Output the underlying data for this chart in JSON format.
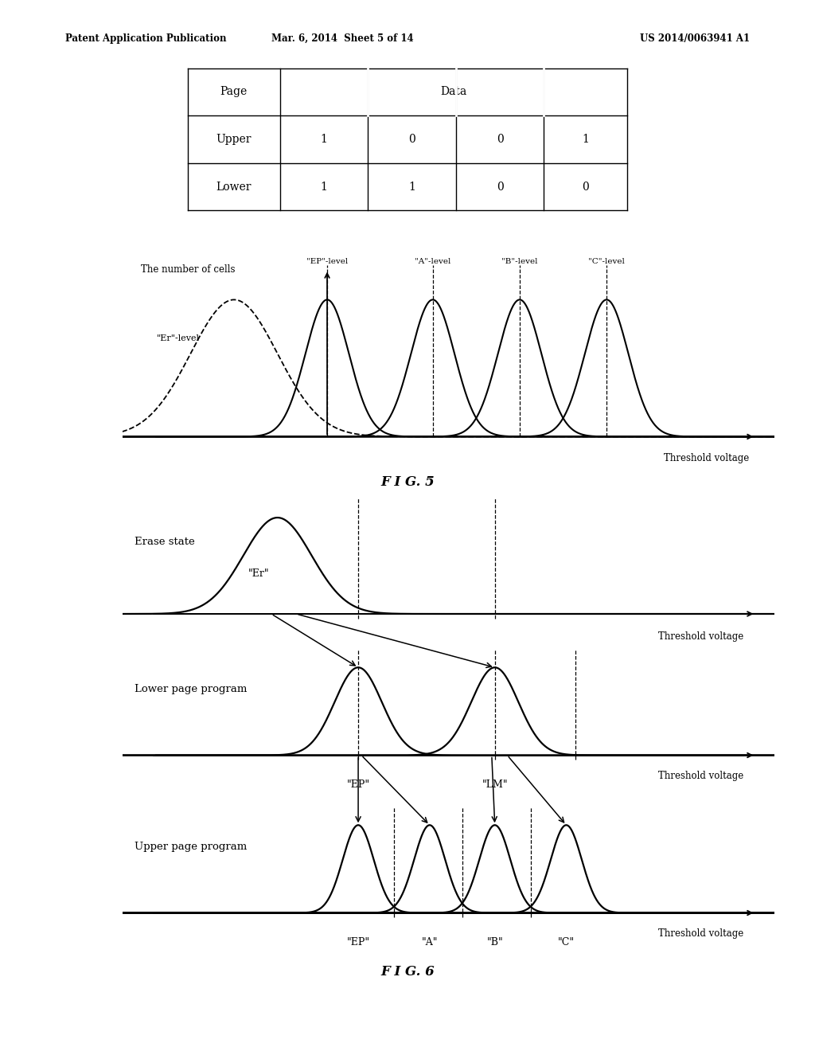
{
  "header_text_left": "Patent Application Publication",
  "header_text_mid": "Mar. 6, 2014  Sheet 5 of 14",
  "header_text_right": "US 2014/0063941 A1",
  "fig5_label": "F I G. 5",
  "fig6_label": "F I G. 6",
  "fig5_ylabel": "The number of cells",
  "fig5_xlabel": "Threshold voltage",
  "fig5_er_label": "\"Er\"-level",
  "fig5_levels": [
    "\"EP\"-level",
    "\"A\"-level",
    "\"B\"-level",
    "\"C\"-level"
  ],
  "fig6_erase_label": "Erase state",
  "fig6_lower_label": "Lower page program",
  "fig6_upper_label": "Upper page program",
  "fig6_xlabel": "Threshold voltage",
  "fig6_er_label": "\"Er\"",
  "fig6_ep1_label": "\"EP\"",
  "fig6_lm_label": "\"LM\"",
  "fig6_ep2_label": "\"EP\"",
  "fig6_a_label": "\"A\"",
  "fig6_b_label": "\"B\"",
  "fig6_c_label": "\"C\"",
  "upper_row": [
    "1",
    "0",
    "0",
    "1"
  ],
  "lower_row": [
    "1",
    "1",
    "0",
    "0"
  ],
  "bg_color": "#ffffff"
}
